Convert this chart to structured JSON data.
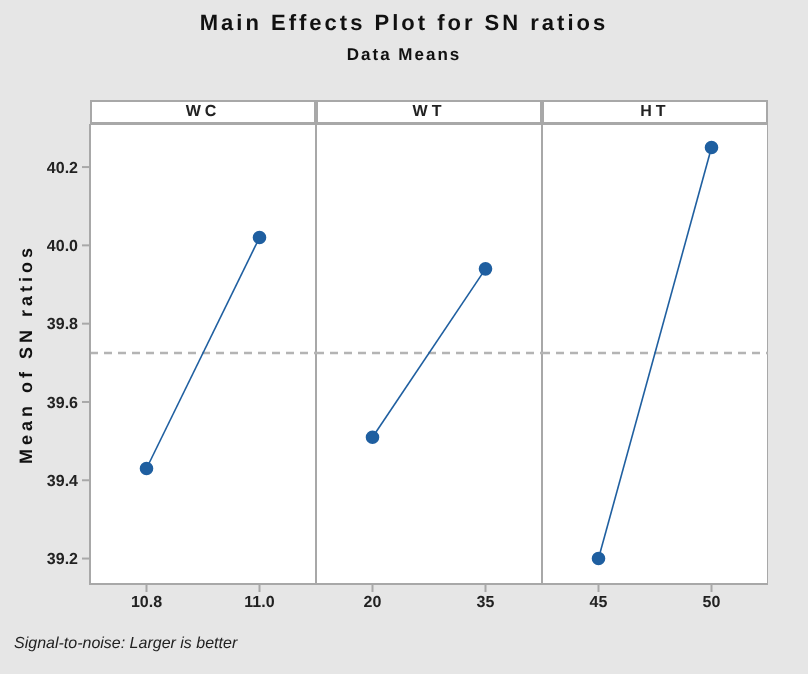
{
  "chart_data": [
    {
      "type": "line",
      "title": "WC",
      "annotations": [
        "Main Effects Plot for SN ratios",
        "Data Means",
        "Signal-to-noise: Larger is better"
      ],
      "ylabel": "Mean of SN ratios",
      "categories": [
        "10.8",
        "11.0"
      ],
      "values": [
        39.43,
        40.02
      ],
      "color": "#1f5fa0",
      "marker": "circle",
      "ylim": [
        39.135,
        40.31
      ],
      "yticks": [
        39.2,
        39.4,
        39.6,
        39.8,
        {
          "value": 40,
          "label": "40.0"
        },
        40.2
      ],
      "ref_lines": [
        {
          "axis": "y",
          "value": 39.725,
          "color": "#b4b4b4",
          "line_style": "dashed"
        }
      ]
    },
    {
      "type": "line",
      "title": "WT",
      "categories": [
        "20",
        "35"
      ],
      "values": [
        39.51,
        39.94
      ],
      "color": "#1f5fa0",
      "marker": "circle",
      "ylim": [
        39.135,
        40.31
      ],
      "ref_lines": [
        {
          "axis": "y",
          "value": 39.725,
          "color": "#b4b4b4",
          "line_style": "dashed"
        }
      ],
      "tick_labels": "x"
    },
    {
      "type": "line",
      "title": "HT",
      "categories": [
        "45",
        "50"
      ],
      "values": [
        39.2,
        40.25
      ],
      "color": "#1f5fa0",
      "marker": "circle",
      "ylim": [
        39.135,
        40.31
      ],
      "ref_lines": [
        {
          "axis": "y",
          "value": 39.725,
          "color": "#b4b4b4",
          "line_style": "dashed"
        }
      ],
      "tick_labels": "x"
    }
  ]
}
